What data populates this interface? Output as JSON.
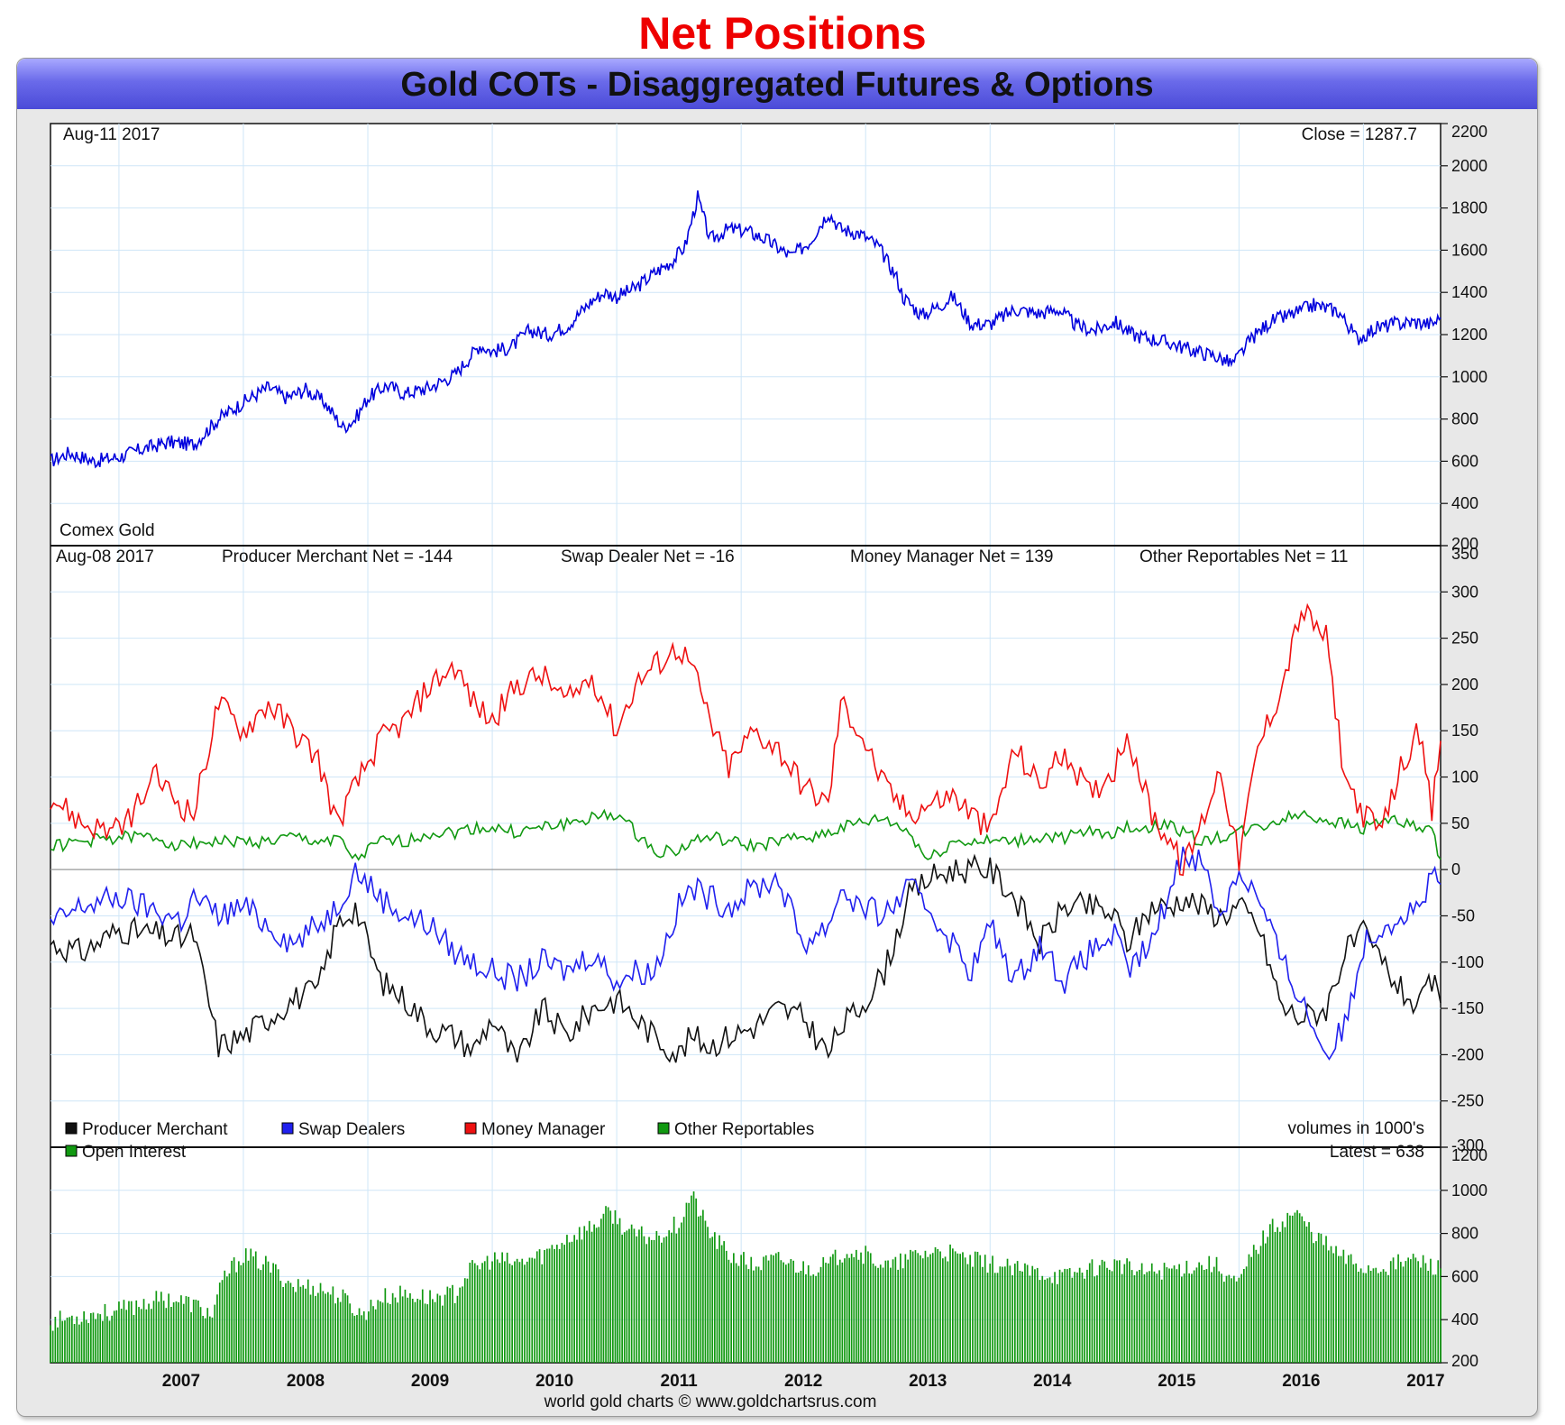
{
  "header": {
    "page_title": "Net Positions",
    "chart_title": "Gold COTs - Disaggregated Futures & Options",
    "credit": "world gold charts © www.goldchartsrus.com"
  },
  "chart_data": [
    {
      "type": "line",
      "name": "price",
      "date_label": "Aug-11  2017",
      "close_label": "Close = 1287.7",
      "instrument_label": "Comex Gold",
      "ylim": [
        200,
        2200
      ],
      "yticks": [
        200,
        400,
        600,
        800,
        1000,
        1200,
        1400,
        1600,
        1800,
        2000,
        2200
      ],
      "color": "#0000dd",
      "series": [
        {
          "x": [
            2006.45,
            2006.6,
            2006.8,
            2007.0,
            2007.2,
            2007.4,
            2007.6,
            2007.8,
            2008.0,
            2008.2,
            2008.35,
            2008.5,
            2008.65,
            2008.8,
            2008.9,
            2009.0,
            2009.15,
            2009.3,
            2009.5,
            2009.7,
            2009.9,
            2010.0,
            2010.15,
            2010.3,
            2010.45,
            2010.6,
            2010.8,
            2010.9,
            2011.0,
            2011.15,
            2011.3,
            2011.45,
            2011.55,
            2011.65,
            2011.75,
            2011.9,
            2012.05,
            2012.2,
            2012.4,
            2012.55,
            2012.7,
            2012.8,
            2012.95,
            2013.1,
            2013.25,
            2013.3,
            2013.45,
            2013.6,
            2013.7,
            2013.85,
            2014.0,
            2014.2,
            2014.4,
            2014.55,
            2014.7,
            2014.85,
            2015.0,
            2015.15,
            2015.3,
            2015.45,
            2015.6,
            2015.8,
            2015.95,
            2016.1,
            2016.25,
            2016.45,
            2016.6,
            2016.8,
            2016.95,
            2017.1,
            2017.25,
            2017.4,
            2017.55,
            2017.62
          ],
          "y": [
            600,
            640,
            600,
            620,
            660,
            690,
            680,
            800,
            880,
            950,
            900,
            940,
            880,
            760,
            800,
            900,
            960,
            920,
            950,
            1010,
            1150,
            1120,
            1140,
            1220,
            1200,
            1240,
            1360,
            1400,
            1380,
            1420,
            1490,
            1550,
            1620,
            1850,
            1650,
            1700,
            1690,
            1650,
            1570,
            1640,
            1780,
            1700,
            1680,
            1620,
            1470,
            1380,
            1290,
            1340,
            1380,
            1250,
            1250,
            1320,
            1300,
            1320,
            1240,
            1220,
            1260,
            1200,
            1180,
            1160,
            1130,
            1100,
            1060,
            1180,
            1260,
            1300,
            1340,
            1310,
            1180,
            1230,
            1250,
            1260,
            1250,
            1280
          ]
        }
      ]
    },
    {
      "type": "line",
      "name": "net-positions",
      "date_label": "Aug-08  2017",
      "labels": [
        "Producer Merchant Net = -144",
        "Swap Dealer Net = -16",
        "Money Manager Net = 139",
        "Other Reportables Net = 11"
      ],
      "volume_note": "volumes in 1000's",
      "ylim": [
        -300,
        350
      ],
      "yticks": [
        -300,
        -250,
        -200,
        -150,
        -100,
        -50,
        0,
        50,
        100,
        150,
        200,
        250,
        300,
        350
      ],
      "legend": [
        {
          "label": "Producer Merchant",
          "color": "#111111"
        },
        {
          "label": "Swap Dealers",
          "color": "#2020ee"
        },
        {
          "label": "Money Manager",
          "color": "#ee1111"
        },
        {
          "label": "Other Reportables",
          "color": "#119911"
        }
      ],
      "x": [
        2006.45,
        2006.7,
        2007.0,
        2007.3,
        2007.5,
        2007.6,
        2007.8,
        2008.0,
        2008.2,
        2008.4,
        2008.6,
        2008.75,
        2008.9,
        2009.1,
        2009.3,
        2009.5,
        2009.7,
        2009.85,
        2010.0,
        2010.2,
        2010.4,
        2010.6,
        2010.8,
        2011.0,
        2011.15,
        2011.3,
        2011.5,
        2011.6,
        2011.75,
        2011.9,
        2012.1,
        2012.3,
        2012.5,
        2012.7,
        2012.8,
        2012.95,
        2013.15,
        2013.35,
        2013.5,
        2013.7,
        2013.85,
        2014.0,
        2014.2,
        2014.4,
        2014.6,
        2014.8,
        2015.0,
        2015.1,
        2015.3,
        2015.45,
        2015.55,
        2015.7,
        2015.85,
        2016.0,
        2016.15,
        2016.35,
        2016.5,
        2016.7,
        2016.85,
        2017.0,
        2017.15,
        2017.3,
        2017.45,
        2017.55,
        2017.62
      ],
      "series": [
        {
          "name": "Producer Merchant",
          "color": "#111111",
          "values": [
            -80,
            -90,
            -65,
            -70,
            -75,
            -70,
            -190,
            -180,
            -160,
            -140,
            -130,
            -60,
            -40,
            -120,
            -140,
            -170,
            -180,
            -195,
            -160,
            -210,
            -150,
            -180,
            -150,
            -140,
            -160,
            -180,
            -200,
            -180,
            -190,
            -180,
            -170,
            -150,
            -160,
            -200,
            -170,
            -150,
            -110,
            -30,
            -10,
            0,
            0,
            0,
            -30,
            -80,
            -40,
            -40,
            -50,
            -80,
            -40,
            -40,
            -30,
            -40,
            -50,
            -40,
            -60,
            -150,
            -160,
            -150,
            -90,
            -70,
            -100,
            -130,
            -150,
            -120,
            -144
          ]
        },
        {
          "name": "Swap Dealers",
          "color": "#2020ee",
          "values": [
            -60,
            -40,
            -30,
            -45,
            -55,
            -30,
            -50,
            -40,
            -60,
            -80,
            -60,
            -40,
            0,
            -30,
            -50,
            -60,
            -90,
            -100,
            -110,
            -120,
            -100,
            -110,
            -90,
            -120,
            -110,
            -110,
            -40,
            -20,
            -30,
            -40,
            -20,
            -10,
            -80,
            -60,
            -20,
            -40,
            -50,
            -20,
            -40,
            -80,
            -110,
            -60,
            -120,
            -80,
            -120,
            -90,
            -70,
            -110,
            -80,
            -20,
            20,
            10,
            -50,
            0,
            -30,
            -100,
            -140,
            -200,
            -170,
            -80,
            -60,
            -50,
            -40,
            -10,
            -16
          ]
        },
        {
          "name": "Money Manager",
          "color": "#ee1111",
          "values": [
            80,
            50,
            40,
            100,
            70,
            60,
            180,
            150,
            180,
            150,
            120,
            50,
            90,
            140,
            160,
            200,
            220,
            180,
            160,
            200,
            210,
            180,
            210,
            150,
            200,
            220,
            240,
            220,
            160,
            110,
            150,
            130,
            90,
            70,
            180,
            150,
            90,
            60,
            70,
            80,
            60,
            40,
            130,
            90,
            130,
            80,
            110,
            150,
            60,
            30,
            0,
            50,
            110,
            10,
            130,
            200,
            280,
            250,
            100,
            60,
            40,
            110,
            150,
            60,
            139
          ]
        },
        {
          "name": "Other Reportables",
          "color": "#119911",
          "values": [
            25,
            30,
            35,
            35,
            25,
            30,
            30,
            30,
            30,
            35,
            30,
            35,
            10,
            30,
            30,
            40,
            40,
            45,
            45,
            40,
            45,
            50,
            55,
            60,
            40,
            20,
            20,
            30,
            35,
            30,
            25,
            30,
            35,
            40,
            45,
            50,
            55,
            40,
            10,
            30,
            30,
            30,
            30,
            35,
            35,
            40,
            40,
            45,
            45,
            50,
            40,
            30,
            35,
            40,
            45,
            55,
            60,
            55,
            50,
            45,
            55,
            50,
            45,
            40,
            11
          ]
        }
      ]
    },
    {
      "type": "bar",
      "name": "open-interest",
      "legend": [
        {
          "label": "Open Interest",
          "color": "#119911"
        }
      ],
      "latest_label": "Latest = 638",
      "ylim": [
        200,
        1200
      ],
      "yticks": [
        200,
        400,
        600,
        800,
        1000,
        1200
      ],
      "color": "#119911",
      "series": [
        {
          "x": [
            2006.45,
            2006.7,
            2007.0,
            2007.2,
            2007.4,
            2007.6,
            2007.75,
            2007.85,
            2008.0,
            2008.2,
            2008.4,
            2008.6,
            2008.8,
            2008.95,
            2009.1,
            2009.3,
            2009.5,
            2009.7,
            2009.8,
            2010.0,
            2010.2,
            2010.4,
            2010.6,
            2010.8,
            2010.95,
            2011.1,
            2011.3,
            2011.5,
            2011.6,
            2011.75,
            2011.9,
            2012.1,
            2012.3,
            2012.5,
            2012.7,
            2012.85,
            2013.0,
            2013.2,
            2013.4,
            2013.6,
            2013.8,
            2014.0,
            2014.2,
            2014.4,
            2014.6,
            2014.8,
            2015.0,
            2015.2,
            2015.4,
            2015.6,
            2015.8,
            2016.0,
            2016.1,
            2016.25,
            2016.45,
            2016.6,
            2016.8,
            2017.0,
            2017.2,
            2017.4,
            2017.62
          ],
          "y": [
            390,
            420,
            440,
            480,
            500,
            470,
            420,
            600,
            700,
            650,
            560,
            550,
            500,
            420,
            500,
            520,
            500,
            520,
            620,
            680,
            660,
            700,
            780,
            830,
            900,
            800,
            780,
            850,
            980,
            800,
            700,
            650,
            680,
            640,
            650,
            730,
            700,
            640,
            700,
            720,
            680,
            660,
            630,
            620,
            600,
            640,
            660,
            620,
            630,
            650,
            660,
            560,
            700,
            820,
            900,
            800,
            700,
            640,
            650,
            680,
            638
          ]
        }
      ]
    }
  ],
  "x_axis": {
    "year_labels": [
      "2007",
      "2008",
      "2009",
      "2010",
      "2011",
      "2012",
      "2013",
      "2014",
      "2015",
      "2016",
      "2017"
    ]
  }
}
